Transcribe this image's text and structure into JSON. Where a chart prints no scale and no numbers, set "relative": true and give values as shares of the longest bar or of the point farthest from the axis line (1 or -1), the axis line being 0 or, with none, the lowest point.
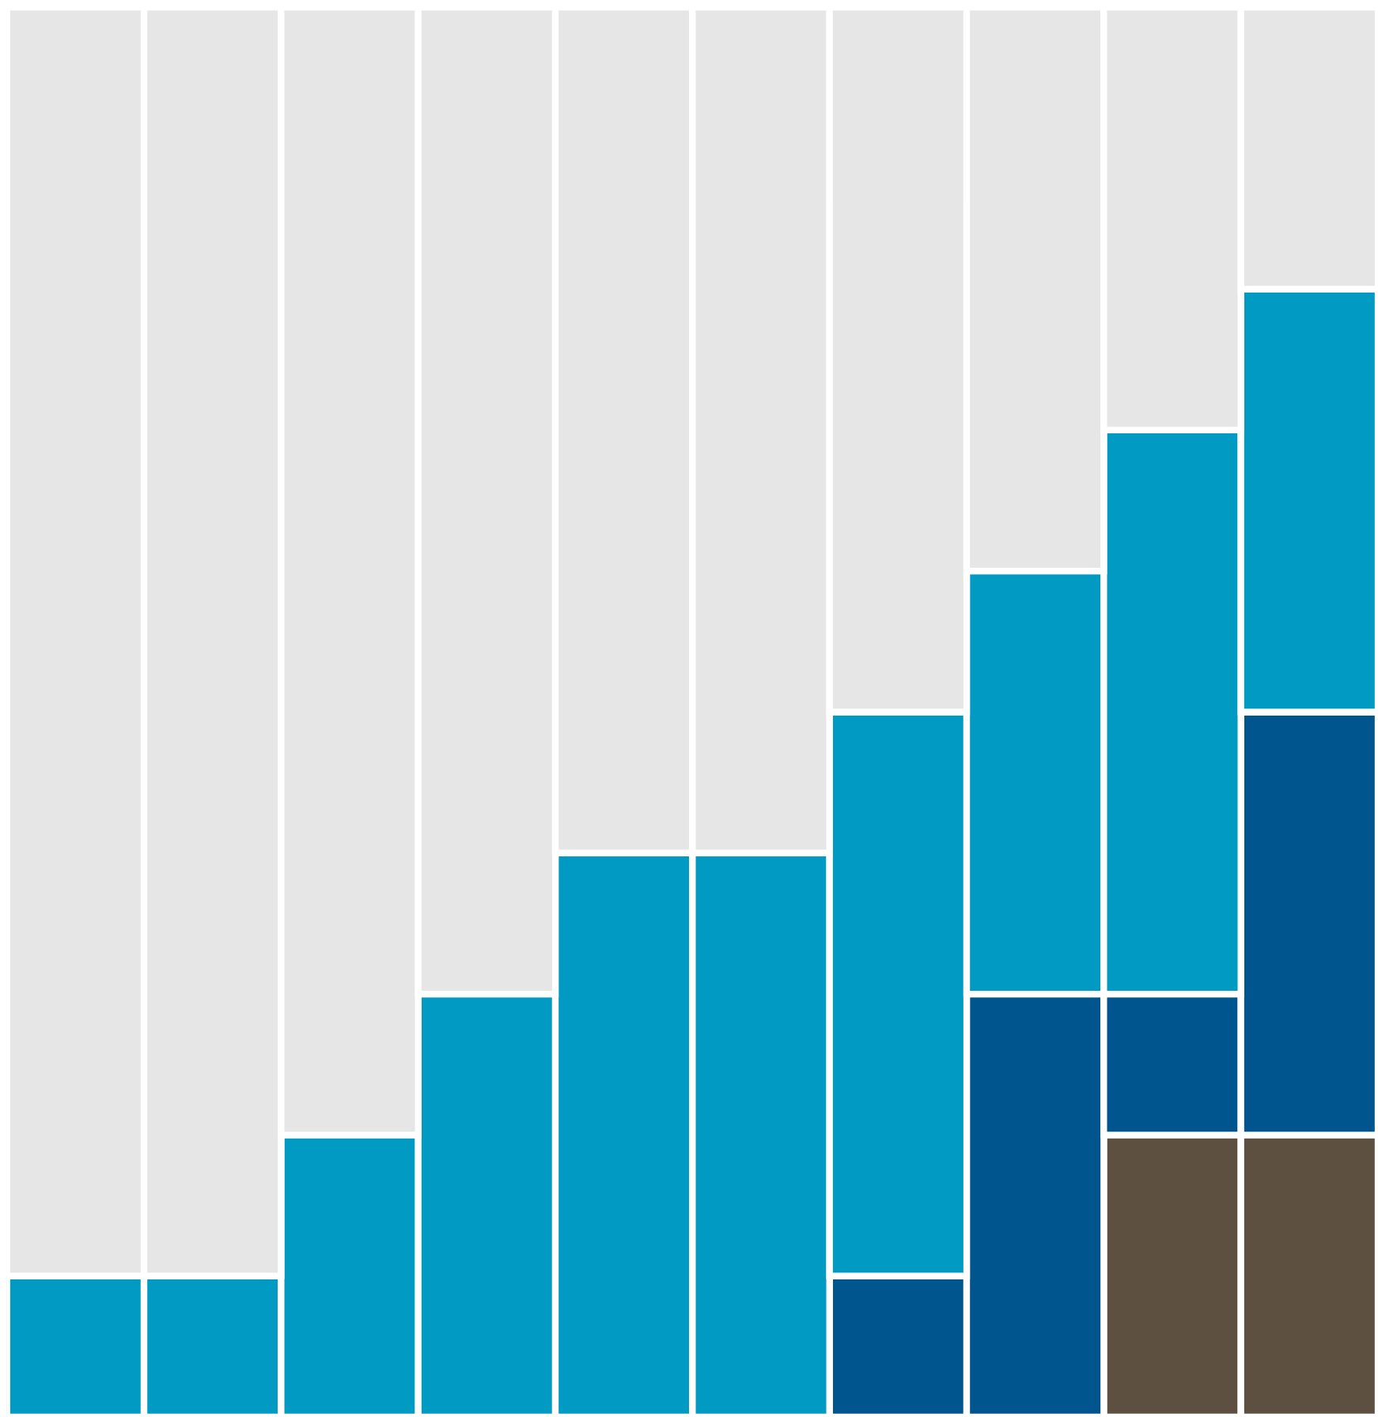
{
  "chart_data": {
    "type": "bar",
    "stacked": true,
    "relative": true,
    "categories": [
      null,
      null,
      null,
      null,
      null,
      null,
      null,
      null,
      null,
      null
    ],
    "series": [
      {
        "color": "#5e5040",
        "values": [
          0,
          0,
          0,
          0,
          0,
          0,
          0,
          0,
          0.2,
          0.2
        ]
      },
      {
        "color": "#00558f",
        "values": [
          0,
          0,
          0,
          0,
          0,
          0,
          0.1,
          0.3,
          0.1,
          0.3
        ]
      },
      {
        "color": "#009ac3",
        "values": [
          0.1,
          0.1,
          0.2,
          0.3,
          0.4,
          0.4,
          0.4,
          0.3,
          0.4,
          0.3
        ]
      },
      {
        "color": "#e6e6e6",
        "values": [
          0.9,
          0.9,
          0.8,
          0.7,
          0.6,
          0.6,
          0.5,
          0.4,
          0.3,
          0.2
        ]
      }
    ]
  }
}
